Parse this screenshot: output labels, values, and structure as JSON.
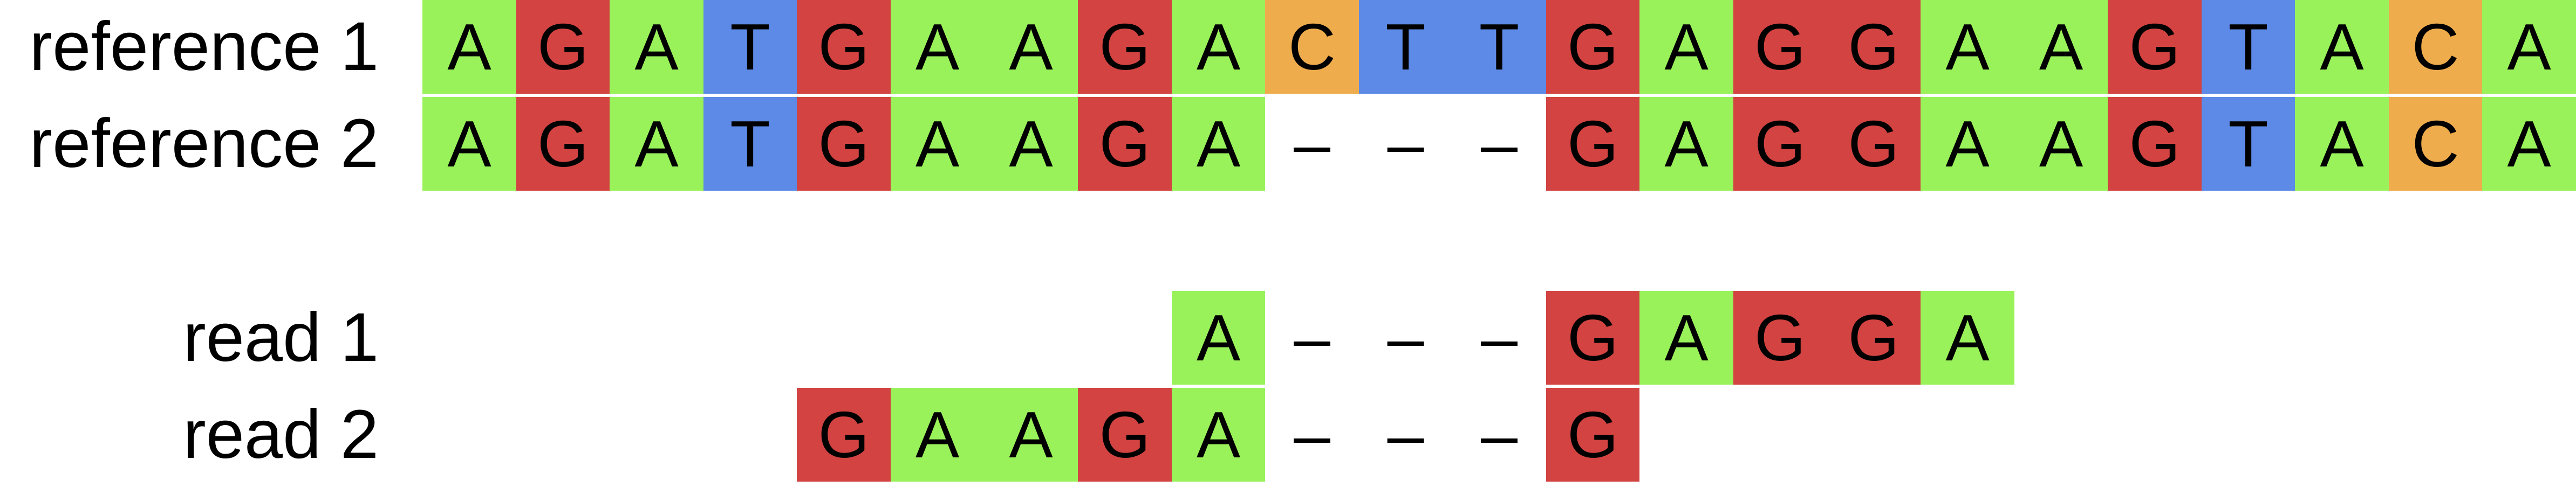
{
  "colors": {
    "A": "#99f25a",
    "G": "#d24341",
    "T": "#5c8ae6",
    "C": "#eeac4d",
    "-": "#ffffff"
  },
  "rows": [
    {
      "label": "reference 1",
      "start": 0,
      "bases": [
        "A",
        "G",
        "A",
        "T",
        "G",
        "A",
        "A",
        "G",
        "A",
        "C",
        "T",
        "T",
        "G",
        "A",
        "G",
        "G",
        "A",
        "A",
        "G",
        "T",
        "A",
        "C",
        "A"
      ]
    },
    {
      "label": "reference 2",
      "start": 0,
      "bases": [
        "A",
        "G",
        "A",
        "T",
        "G",
        "A",
        "A",
        "G",
        "A",
        "-",
        "-",
        "-",
        "G",
        "A",
        "G",
        "G",
        "A",
        "A",
        "G",
        "T",
        "A",
        "C",
        "A"
      ]
    },
    {
      "label": "read 1",
      "start": 8,
      "bases": [
        "A",
        "-",
        "-",
        "-",
        "G",
        "A",
        "G",
        "G",
        "A"
      ]
    },
    {
      "label": "read 2",
      "start": 4,
      "bases": [
        "G",
        "A",
        "A",
        "G",
        "A",
        "-",
        "-",
        "-",
        "G"
      ]
    }
  ]
}
